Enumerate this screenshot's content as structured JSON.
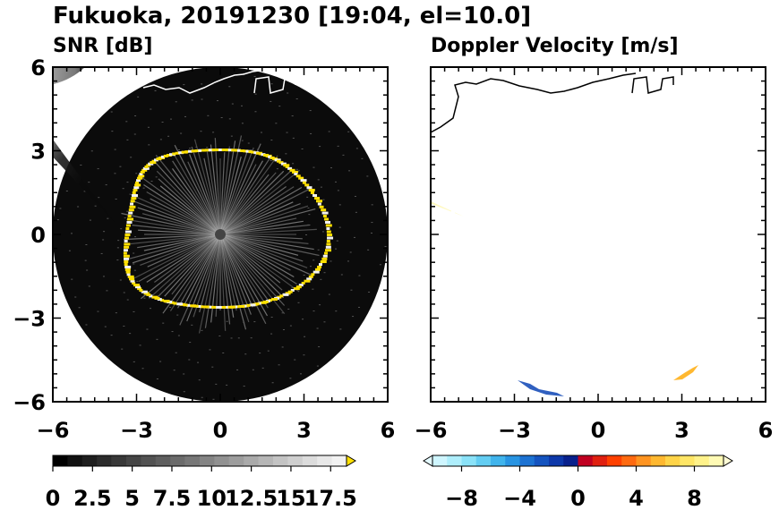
{
  "figure": {
    "title": "Fukuoka, 20191230 [19:04, el=10.0]"
  },
  "chart_data": [
    {
      "type": "heatmap",
      "title": "SNR [dB]",
      "x_ticks": [
        -6,
        -3,
        0,
        3,
        6
      ],
      "y_ticks": [
        -6,
        -3,
        0,
        3,
        6
      ],
      "xlim": [
        -6,
        6
      ],
      "ylim": [
        -6,
        6
      ],
      "radar_range": 6,
      "colorbar": {
        "tick_labels": [
          "0",
          "2.5",
          "5",
          "7.5",
          "10",
          "12.5",
          "15",
          "17.5"
        ],
        "tick_values": [
          0,
          2.5,
          5,
          7.5,
          10,
          12.5,
          15,
          17.5
        ],
        "range": [
          0,
          18.5
        ],
        "extend": "max",
        "colors": [
          "#000000",
          "#111111",
          "#1e1e1e",
          "#2b2b2b",
          "#383838",
          "#454545",
          "#525252",
          "#5e5e5e",
          "#6b6b6b",
          "#777777",
          "#848484",
          "#919191",
          "#9d9d9d",
          "#aaaaaa",
          "#b6b6b6",
          "#c3c3c3",
          "#cfcfcf",
          "#dcdcdc",
          "#e8e8e8",
          "#f2f2f2"
        ],
        "over_color": "#ffe000"
      }
    },
    {
      "type": "heatmap",
      "title": "Doppler Velocity [m/s]",
      "x_ticks": [
        -6,
        -3,
        0,
        3,
        6
      ],
      "y_ticks": [
        -6,
        -3,
        0,
        3,
        6
      ],
      "xlim": [
        -6,
        6
      ],
      "ylim": [
        -6,
        6
      ],
      "colorbar": {
        "tick_labels": [
          "−8",
          "−4",
          "0",
          "4",
          "8"
        ],
        "tick_values": [
          -8,
          -4,
          0,
          4,
          8
        ],
        "range": [
          -10,
          10
        ],
        "extend": "both",
        "colors": [
          "#cff6ff",
          "#aeeefc",
          "#8ae2f8",
          "#63cdf2",
          "#40b4ec",
          "#2894e2",
          "#1c72d2",
          "#1453bf",
          "#0d38aa",
          "#08208c",
          "#c00020",
          "#e02010",
          "#ff4000",
          "#ff6a10",
          "#ff9420",
          "#ffb830",
          "#ffd448",
          "#ffe666",
          "#fff28a",
          "#fffab4"
        ],
        "under_color": "#e4faff",
        "over_color": "#fffcd6"
      }
    }
  ]
}
